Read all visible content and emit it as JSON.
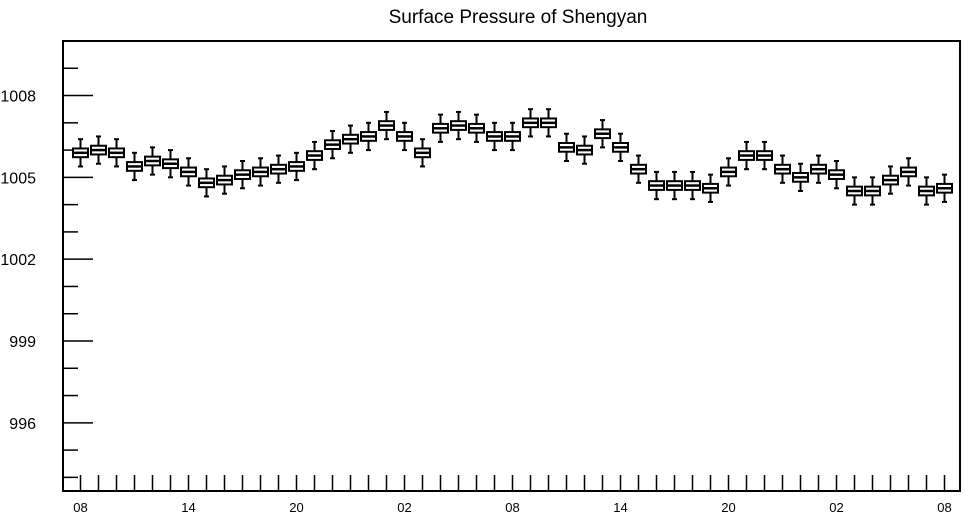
{
  "chart_data": {
    "type": "box",
    "title": "Surface Pressure of Shengyan",
    "xlabel": "",
    "ylabel": "",
    "ylim": [
      993.5,
      1010
    ],
    "yticks": [
      996,
      999,
      1002,
      1005,
      1008
    ],
    "ytick_labels": [
      "996",
      "999",
      "1002",
      "1005",
      "1008"
    ],
    "xtick_labels": [
      "08",
      "14",
      "20",
      "02",
      "08",
      "14",
      "20",
      "02",
      "08"
    ],
    "grid": false,
    "series": [
      {
        "hours": [
          "08",
          "09",
          "10",
          "11",
          "12",
          "13",
          "14",
          "15",
          "16",
          "17",
          "18",
          "19",
          "20",
          "21",
          "22",
          "23",
          "00",
          "01",
          "02",
          "03",
          "04",
          "05",
          "06",
          "07",
          "08",
          "09",
          "10",
          "11",
          "12",
          "13",
          "14",
          "15",
          "16",
          "17",
          "18",
          "19",
          "20",
          "21",
          "22",
          "23",
          "00",
          "01",
          "02",
          "03",
          "04",
          "05",
          "06",
          "07",
          "08"
        ],
        "values": [
          1005.9,
          1006.0,
          1005.9,
          1005.4,
          1005.6,
          1005.5,
          1005.2,
          1004.8,
          1004.9,
          1005.1,
          1005.2,
          1005.3,
          1005.4,
          1005.8,
          1006.2,
          1006.4,
          1006.5,
          1006.9,
          1006.5,
          1005.9,
          1006.8,
          1006.9,
          1006.8,
          1006.5,
          1006.5,
          1007.0,
          1007.0,
          1006.1,
          1006.0,
          1006.6,
          1006.1,
          1005.3,
          1004.7,
          1004.7,
          1004.7,
          1004.6,
          1005.2,
          1005.8,
          1005.8,
          1005.3,
          1005.0,
          1005.3,
          1005.1,
          1004.5,
          1004.5,
          1004.9,
          1005.2,
          1004.5,
          1004.6
        ]
      }
    ]
  }
}
